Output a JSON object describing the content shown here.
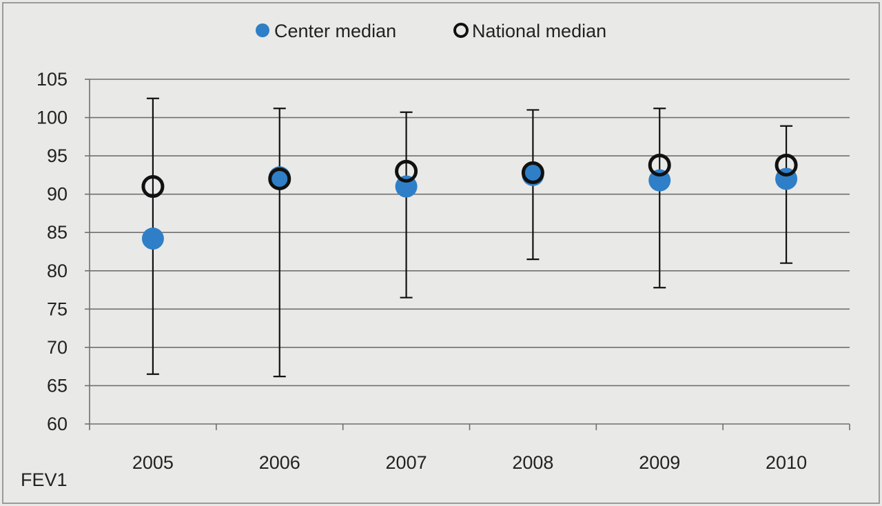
{
  "chart_data": {
    "type": "scatter",
    "title": "",
    "xlabel": "",
    "ylabel": "FEV1",
    "categories": [
      "2005",
      "2006",
      "2007",
      "2008",
      "2009",
      "2010"
    ],
    "ylim": [
      60,
      105
    ],
    "yticks": [
      60,
      65,
      70,
      75,
      80,
      85,
      90,
      95,
      100,
      105
    ],
    "grid": true,
    "legend_position": "top-center",
    "series": [
      {
        "name": "Center median",
        "marker": "filled-circle",
        "color": "#2e7fc7",
        "values": [
          84.2,
          92.2,
          91.0,
          92.5,
          91.8,
          92.0
        ]
      },
      {
        "name": "National median",
        "marker": "open-circle",
        "color": "#111111",
        "values": [
          91.0,
          92.0,
          93.0,
          92.8,
          93.8,
          93.8
        ]
      }
    ],
    "error_bars": {
      "low": [
        66.5,
        66.2,
        76.5,
        81.5,
        77.8,
        81.0
      ],
      "high": [
        102.5,
        101.2,
        100.7,
        101.0,
        101.2,
        98.9
      ]
    }
  }
}
